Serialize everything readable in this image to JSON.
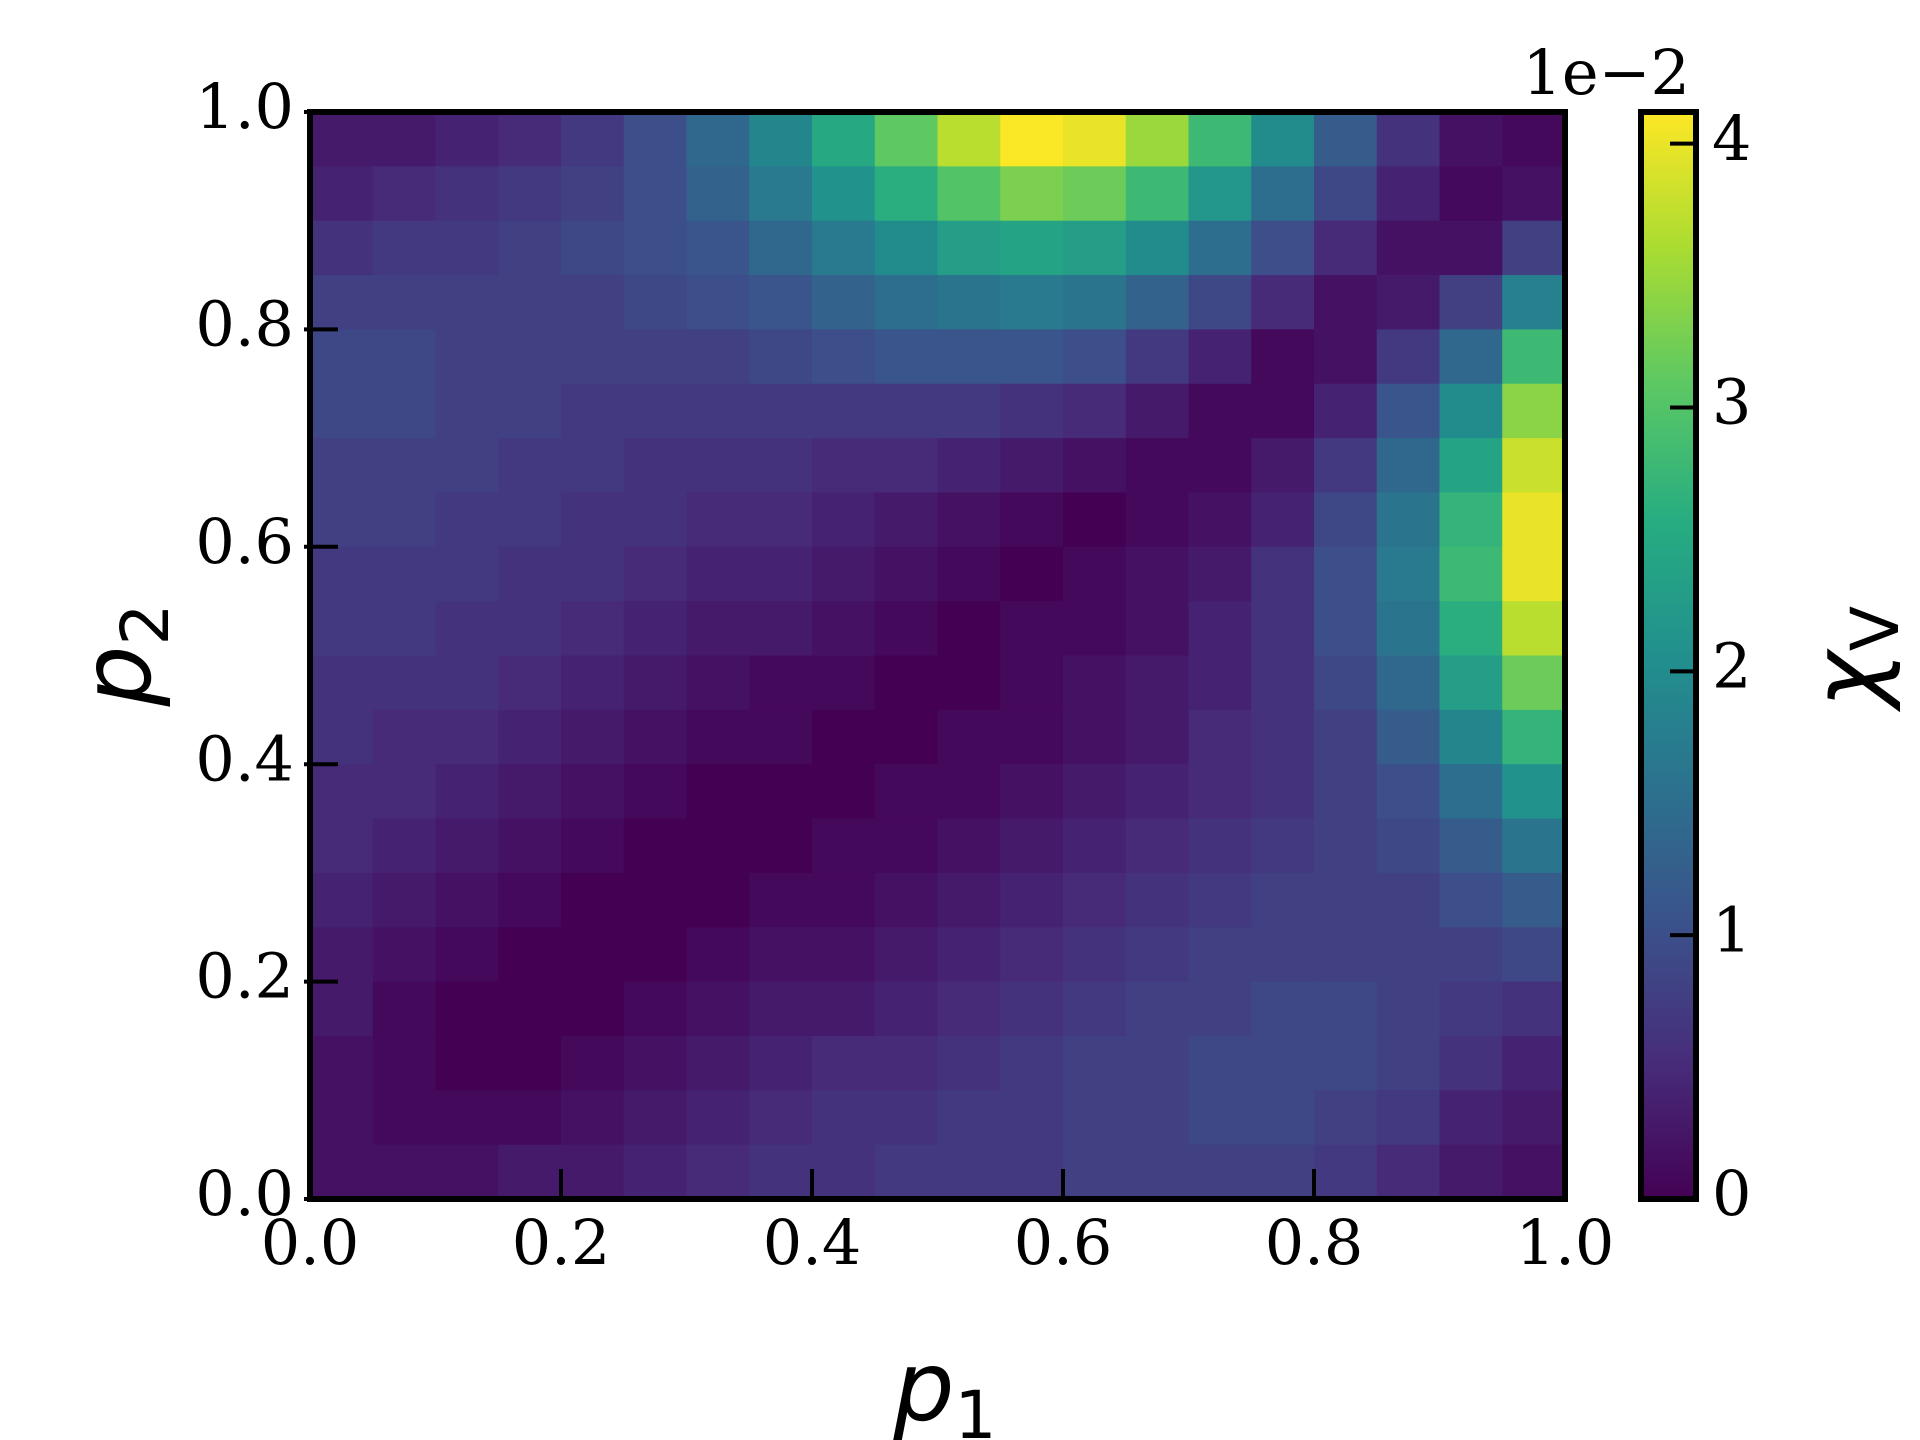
{
  "chart_data": {
    "type": "heatmap",
    "xlabel": {
      "base": "p",
      "subscript": "1"
    },
    "ylabel": {
      "base": "p",
      "subscript": "2"
    },
    "colorbar_label": {
      "base": "χ",
      "subscript": "V"
    },
    "colorbar_offset_label": "1e−2",
    "colormap": "viridis",
    "xlim": [
      0,
      1
    ],
    "ylim": [
      0,
      1
    ],
    "xticks": [
      {
        "value": 0,
        "label": "0.0"
      },
      0.2,
      0.4,
      0.6,
      0.8,
      {
        "value": 1,
        "label": "1.0"
      }
    ],
    "yticks": [
      {
        "value": 0,
        "label": "0.0"
      },
      0.2,
      0.4,
      0.6,
      0.8,
      {
        "value": 1,
        "label": "1.0"
      }
    ],
    "zlim": [
      0,
      4.12
    ],
    "zticks": [
      0,
      1,
      2,
      3,
      4
    ],
    "z": [
      [
        0.3,
        0.3,
        0.4,
        0.5,
        0.7,
        1.0,
        1.4,
        1.9,
        2.5,
        3.1,
        3.7,
        4.1,
        4.0,
        3.5,
        2.8,
        2.0,
        1.2,
        0.6,
        0.2,
        0.1
      ],
      [
        0.4,
        0.5,
        0.6,
        0.7,
        0.8,
        1.0,
        1.3,
        1.7,
        2.1,
        2.6,
        3.0,
        3.3,
        3.2,
        2.8,
        2.2,
        1.5,
        0.9,
        0.4,
        0.1,
        0.2
      ],
      [
        0.6,
        0.7,
        0.7,
        0.8,
        0.9,
        1.0,
        1.1,
        1.4,
        1.7,
        2.0,
        2.3,
        2.4,
        2.3,
        2.0,
        1.5,
        1.0,
        0.5,
        0.2,
        0.2,
        0.8
      ],
      [
        0.8,
        0.8,
        0.8,
        0.8,
        0.8,
        0.9,
        1.0,
        1.1,
        1.3,
        1.5,
        1.6,
        1.7,
        1.6,
        1.3,
        0.9,
        0.5,
        0.2,
        0.3,
        0.8,
        1.8
      ],
      [
        0.9,
        0.9,
        0.8,
        0.8,
        0.8,
        0.8,
        0.8,
        0.9,
        1.0,
        1.1,
        1.1,
        1.1,
        1.0,
        0.7,
        0.4,
        0.1,
        0.2,
        0.7,
        1.4,
        2.8
      ],
      [
        0.9,
        0.9,
        0.8,
        0.8,
        0.7,
        0.7,
        0.7,
        0.7,
        0.7,
        0.7,
        0.7,
        0.6,
        0.5,
        0.3,
        0.1,
        0.1,
        0.4,
        1.1,
        2.0,
        3.4
      ],
      [
        0.8,
        0.8,
        0.8,
        0.7,
        0.7,
        0.6,
        0.6,
        0.6,
        0.5,
        0.5,
        0.4,
        0.3,
        0.2,
        0.1,
        0.1,
        0.3,
        0.7,
        1.4,
        2.4,
        3.8
      ],
      [
        0.8,
        0.8,
        0.7,
        0.7,
        0.6,
        0.6,
        0.5,
        0.5,
        0.4,
        0.3,
        0.2,
        0.1,
        0.0,
        0.1,
        0.2,
        0.4,
        0.9,
        1.6,
        2.7,
        4.0
      ],
      [
        0.7,
        0.7,
        0.7,
        0.6,
        0.6,
        0.5,
        0.4,
        0.4,
        0.3,
        0.2,
        0.1,
        0.0,
        0.1,
        0.2,
        0.3,
        0.6,
        1.0,
        1.7,
        2.8,
        4.0
      ],
      [
        0.7,
        0.7,
        0.6,
        0.6,
        0.5,
        0.4,
        0.3,
        0.3,
        0.2,
        0.1,
        0.0,
        0.1,
        0.1,
        0.2,
        0.4,
        0.6,
        1.0,
        1.6,
        2.6,
        3.7
      ],
      [
        0.6,
        0.6,
        0.6,
        0.5,
        0.4,
        0.3,
        0.2,
        0.1,
        0.1,
        0.0,
        0.0,
        0.1,
        0.2,
        0.3,
        0.4,
        0.6,
        0.9,
        1.4,
        2.3,
        3.2
      ],
      [
        0.6,
        0.5,
        0.5,
        0.4,
        0.3,
        0.2,
        0.1,
        0.1,
        0.0,
        0.0,
        0.1,
        0.1,
        0.2,
        0.3,
        0.5,
        0.6,
        0.8,
        1.2,
        1.9,
        2.7
      ],
      [
        0.5,
        0.5,
        0.4,
        0.3,
        0.2,
        0.1,
        0.0,
        0.0,
        0.0,
        0.1,
        0.1,
        0.2,
        0.3,
        0.4,
        0.5,
        0.6,
        0.8,
        1.0,
        1.5,
        2.1
      ],
      [
        0.5,
        0.4,
        0.3,
        0.2,
        0.1,
        0.0,
        0.0,
        0.0,
        0.1,
        0.1,
        0.2,
        0.3,
        0.4,
        0.5,
        0.6,
        0.7,
        0.8,
        0.9,
        1.2,
        1.6
      ],
      [
        0.4,
        0.3,
        0.2,
        0.1,
        0.0,
        0.0,
        0.0,
        0.1,
        0.1,
        0.2,
        0.3,
        0.4,
        0.5,
        0.6,
        0.7,
        0.8,
        0.8,
        0.8,
        1.0,
        1.2
      ],
      [
        0.3,
        0.2,
        0.1,
        0.0,
        0.0,
        0.0,
        0.1,
        0.2,
        0.2,
        0.3,
        0.4,
        0.5,
        0.6,
        0.7,
        0.8,
        0.8,
        0.8,
        0.8,
        0.8,
        0.9
      ],
      [
        0.3,
        0.1,
        0.0,
        0.0,
        0.0,
        0.1,
        0.2,
        0.3,
        0.3,
        0.4,
        0.5,
        0.6,
        0.7,
        0.8,
        0.8,
        0.9,
        0.9,
        0.8,
        0.7,
        0.6
      ],
      [
        0.2,
        0.1,
        0.0,
        0.0,
        0.1,
        0.2,
        0.3,
        0.4,
        0.5,
        0.5,
        0.6,
        0.7,
        0.8,
        0.8,
        0.9,
        0.9,
        0.9,
        0.8,
        0.6,
        0.4
      ],
      [
        0.2,
        0.1,
        0.1,
        0.1,
        0.2,
        0.3,
        0.4,
        0.5,
        0.6,
        0.6,
        0.7,
        0.7,
        0.8,
        0.8,
        0.9,
        0.9,
        0.8,
        0.7,
        0.4,
        0.3
      ],
      [
        0.2,
        0.2,
        0.2,
        0.3,
        0.3,
        0.4,
        0.5,
        0.6,
        0.6,
        0.7,
        0.7,
        0.7,
        0.8,
        0.8,
        0.8,
        0.8,
        0.7,
        0.5,
        0.3,
        0.2
      ]
    ]
  }
}
